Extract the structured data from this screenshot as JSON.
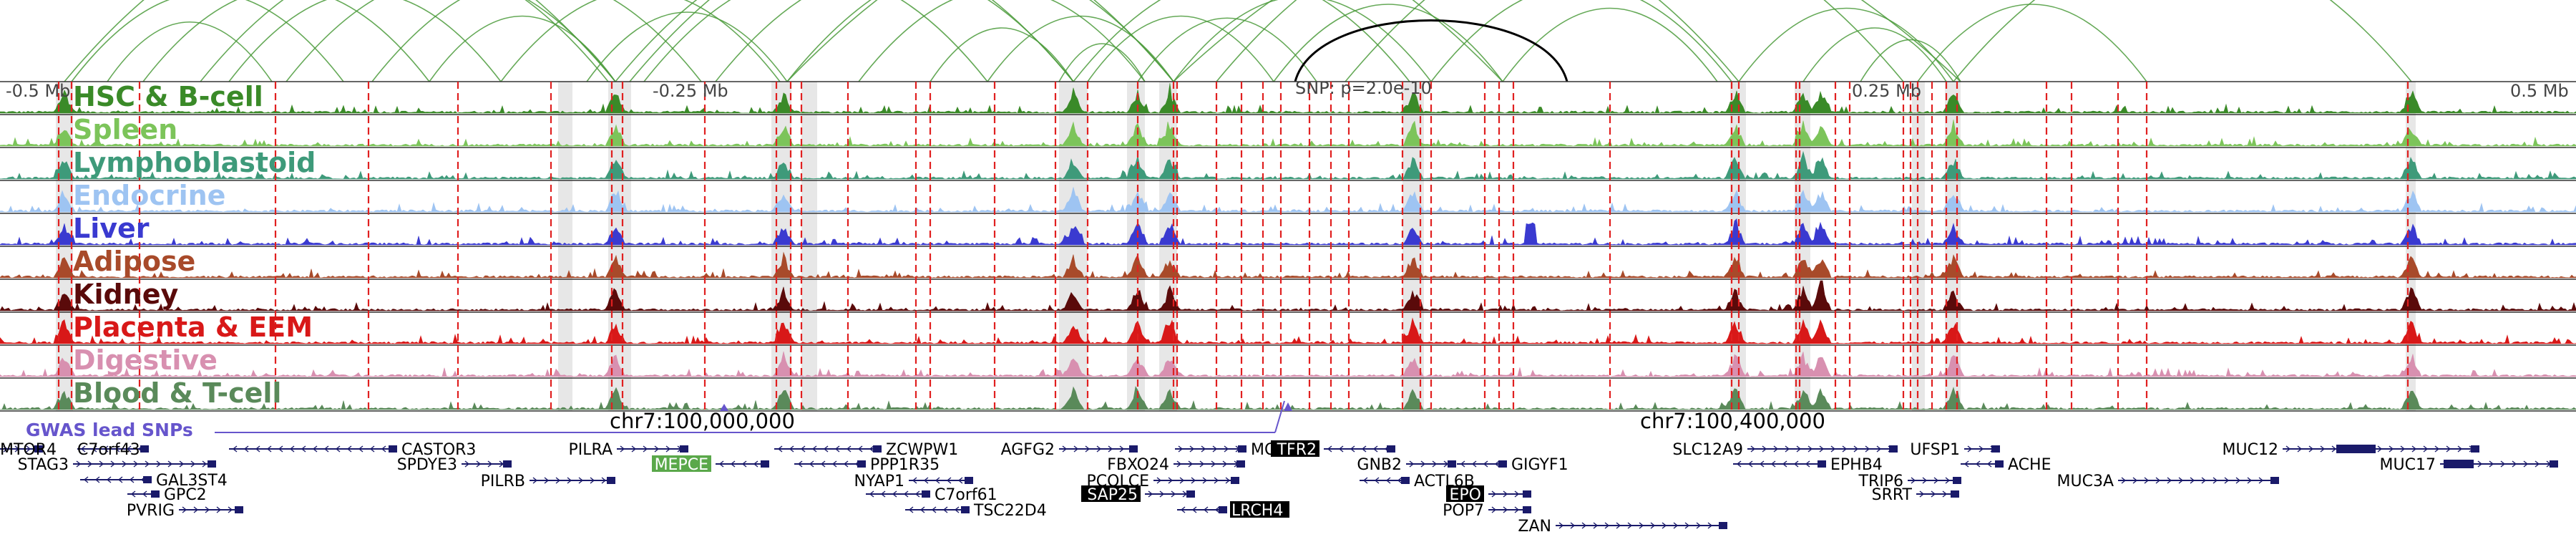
{
  "colors": {
    "loop": "#4a9a3a",
    "highlight_loop": "#000000",
    "red_line": "#e02020",
    "gray_band": "#d4d4d4",
    "gene": "#1a1a6a",
    "snp": "#6655cc"
  },
  "ruler": {
    "top_labels": [
      "-0.5 Mb",
      "-0.25 Mb",
      "SNP: p=2.0e-10",
      "0.25 Mb",
      "0.5 Mb"
    ],
    "bottom_labels": [
      "chr7:100,000,000",
      "chr7:100,400,000"
    ]
  },
  "tracks": [
    {
      "name": "HSC & B-cell",
      "color": "#3a8a28"
    },
    {
      "name": "Spleen",
      "color": "#7cc45a"
    },
    {
      "name": "Lymphoblastoid",
      "color": "#3e9a7a"
    },
    {
      "name": "Endocrine",
      "color": "#9ec4f2"
    },
    {
      "name": "Liver",
      "color": "#3a3ad0"
    },
    {
      "name": "Adipose",
      "color": "#a84a2a"
    },
    {
      "name": "Kidney",
      "color": "#5a0a0a"
    },
    {
      "name": "Placenta & EEM",
      "color": "#d81818"
    },
    {
      "name": "Digestive",
      "color": "#d890b0"
    },
    {
      "name": "Blood & T-cell",
      "color": "#5a8a5a"
    }
  ],
  "gwas_label": "GWAS lead SNPs",
  "genes": [
    {
      "name": "MTOR4"
    },
    {
      "name": "C7orf43"
    },
    {
      "name": "CASTOR3"
    },
    {
      "name": "STAG3"
    },
    {
      "name": "SPDYE3"
    },
    {
      "name": "GAL3ST4"
    },
    {
      "name": "GPC2"
    },
    {
      "name": "PVRIG"
    },
    {
      "name": "PILRA"
    },
    {
      "name": "ZCWPW1"
    },
    {
      "name": "MEPCE",
      "style": "green"
    },
    {
      "name": "PPP1R35"
    },
    {
      "name": "PILRB"
    },
    {
      "name": "NYAP1"
    },
    {
      "name": "C7orf61"
    },
    {
      "name": "TSC22D4"
    },
    {
      "name": "AGFG2"
    },
    {
      "name": "MOSPD3"
    },
    {
      "name": "TFR2",
      "style": "black"
    },
    {
      "name": "FBXO24"
    },
    {
      "name": "GNB2"
    },
    {
      "name": "GIGYF1"
    },
    {
      "name": "PCOLCE"
    },
    {
      "name": "ACTL6B"
    },
    {
      "name": "SAP25",
      "style": "black"
    },
    {
      "name": "LRCH4",
      "style": "black"
    },
    {
      "name": "POP7"
    },
    {
      "name": "EPO",
      "style": "black"
    },
    {
      "name": "ZAN"
    },
    {
      "name": "SLC12A9"
    },
    {
      "name": "EPHB4"
    },
    {
      "name": "TRIP6"
    },
    {
      "name": "SRRT"
    },
    {
      "name": "UFSP1"
    },
    {
      "name": "ACHE"
    },
    {
      "name": "MUC3A"
    },
    {
      "name": "MUC12"
    },
    {
      "name": "MUC17"
    }
  ]
}
